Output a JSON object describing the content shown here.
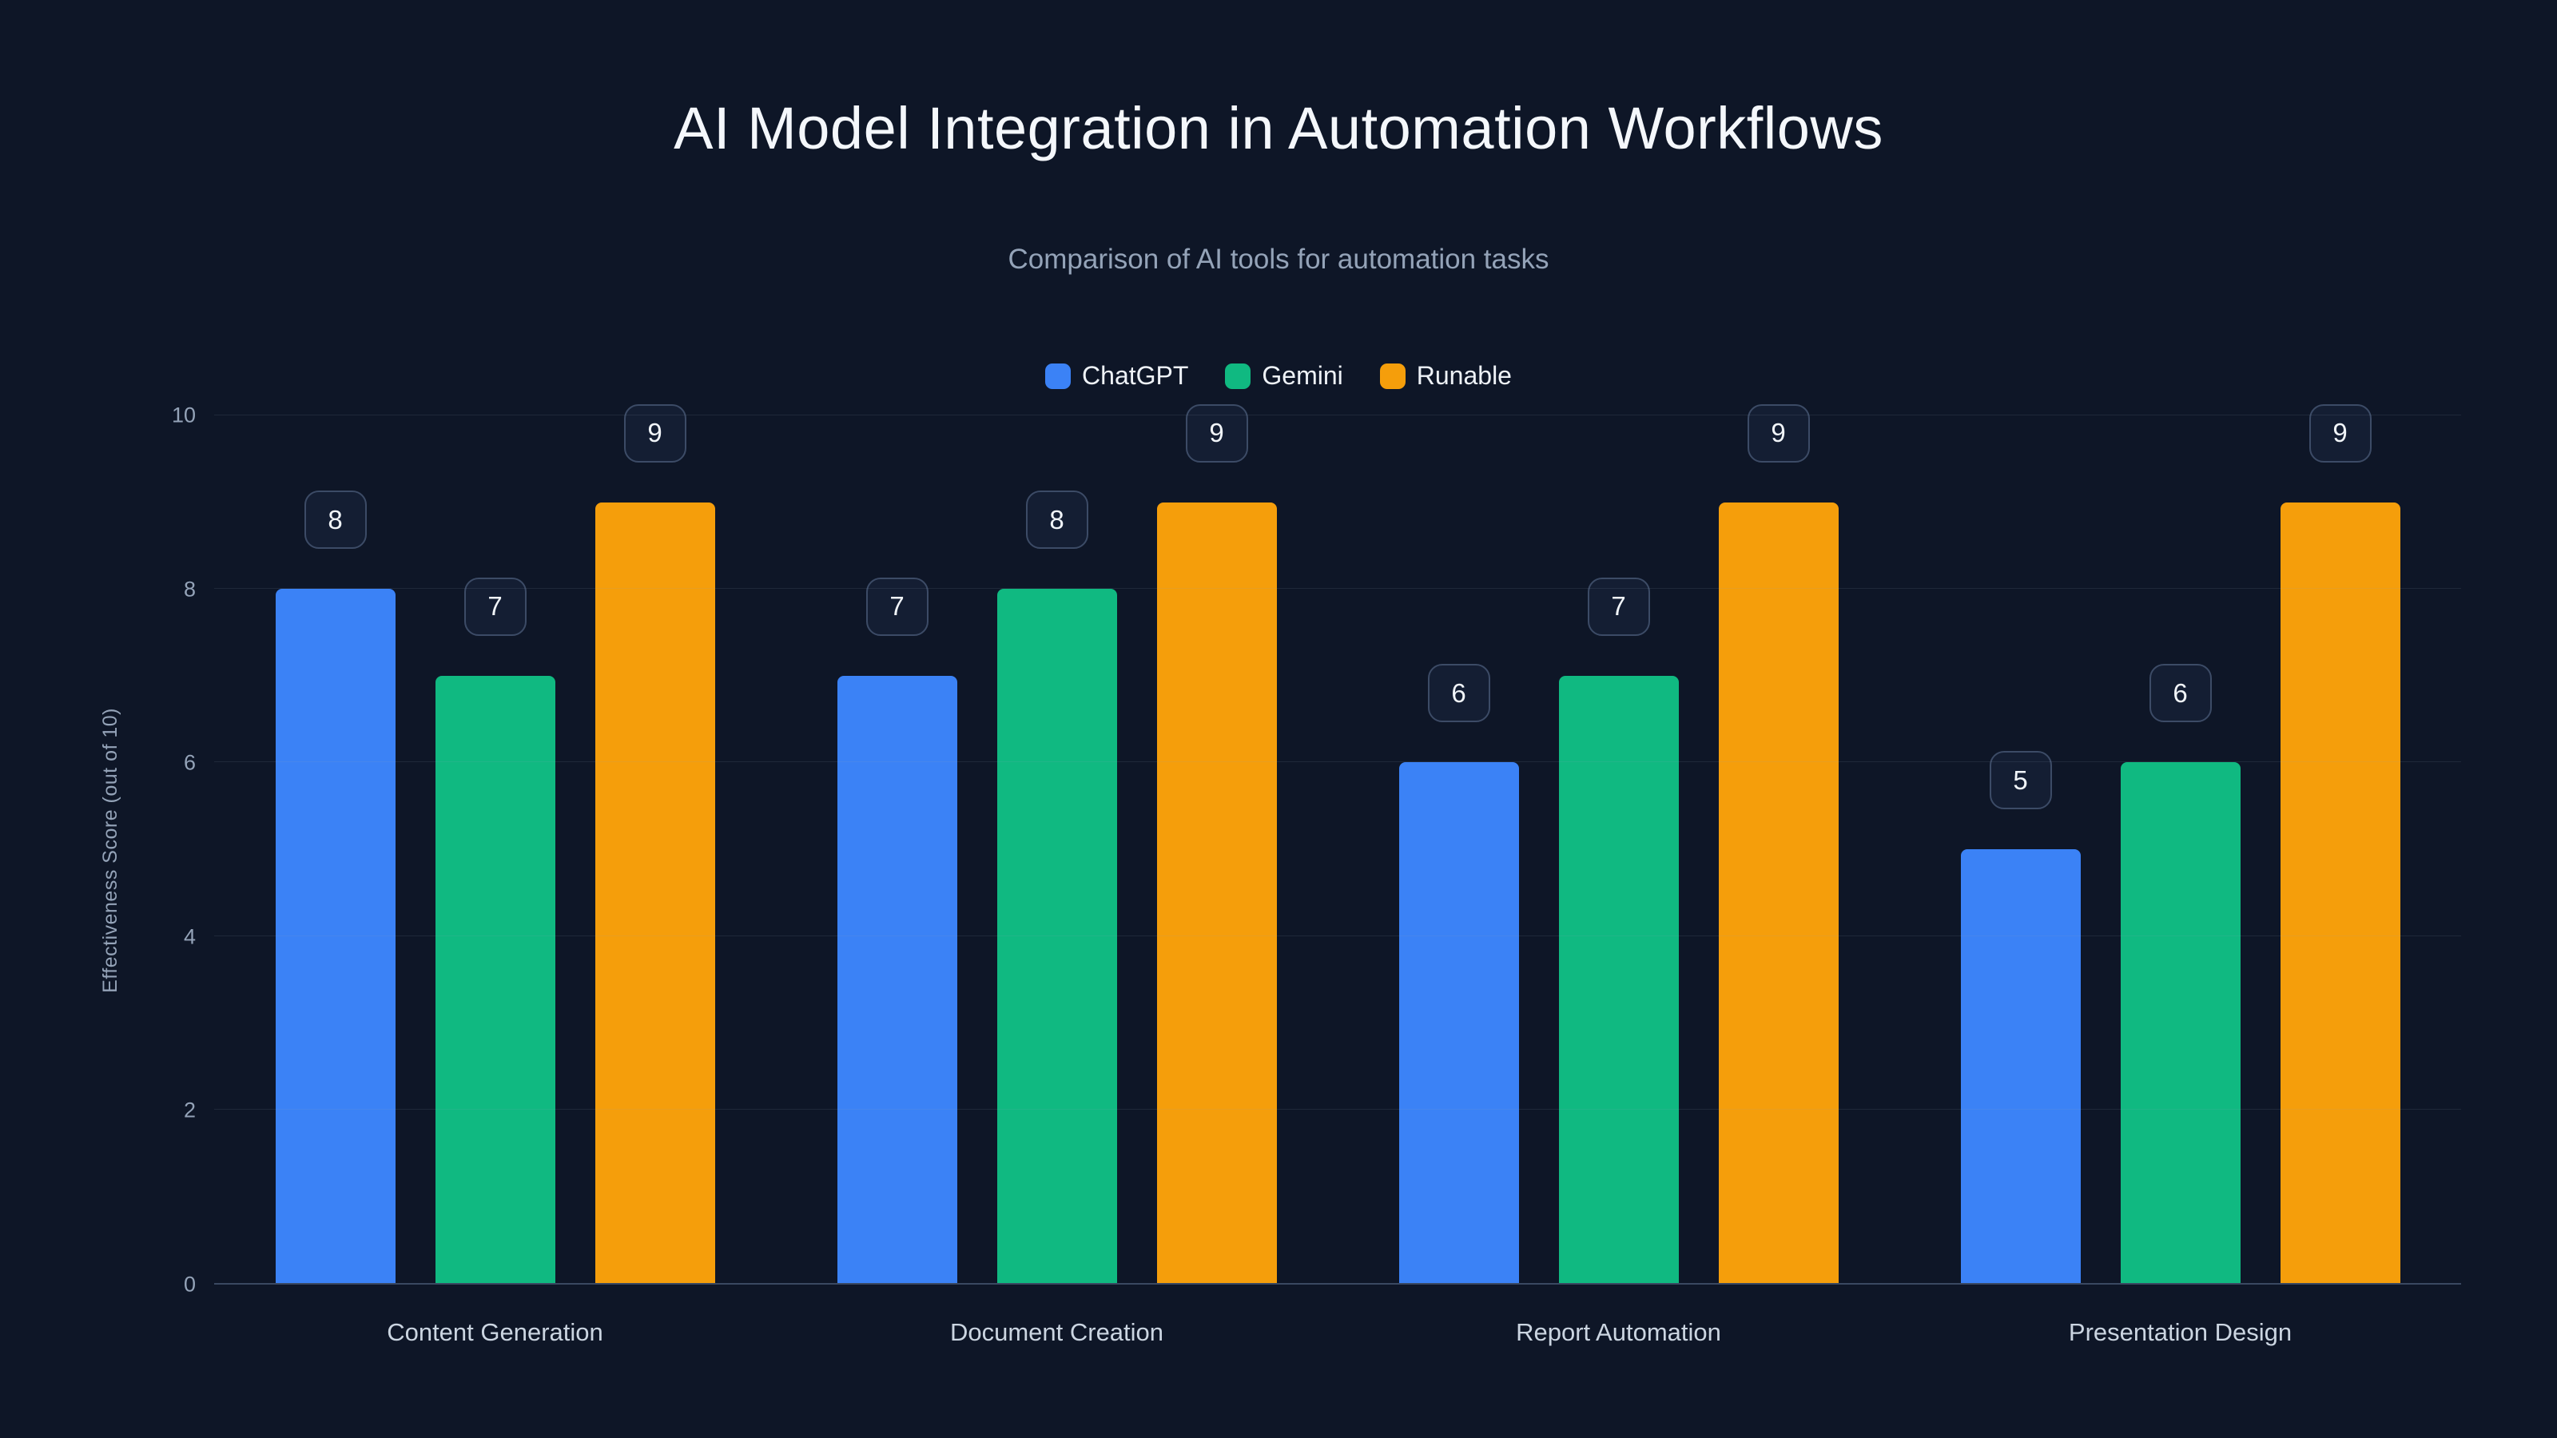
{
  "title": "AI Model Integration in Automation Workflows",
  "subtitle": "Comparison of AI tools for automation tasks",
  "colors": {
    "background": "#0e1627",
    "title_text": "#f4f7fb",
    "muted_text": "#94a3b8",
    "axis_line": "#3a4861",
    "badge_border": "#3c4b66"
  },
  "chart_data": {
    "type": "bar",
    "categories": [
      "Content Generation",
      "Document Creation",
      "Report Automation",
      "Presentation Design"
    ],
    "series": [
      {
        "name": "ChatGPT",
        "color": "#3b82f6",
        "values": [
          8,
          7,
          6,
          5
        ]
      },
      {
        "name": "Gemini",
        "color": "#10b981",
        "values": [
          7,
          8,
          7,
          6
        ]
      },
      {
        "name": "Runable",
        "color": "#f59e0b",
        "values": [
          9,
          9,
          9,
          9
        ]
      }
    ],
    "xlabel": "",
    "ylabel": "Effectiveness Score (out of 10)",
    "ylim": [
      0,
      10
    ],
    "yticks": [
      0,
      2,
      4,
      6,
      8,
      10
    ],
    "grid": true,
    "legend_position": "top-center",
    "value_labels": true
  }
}
